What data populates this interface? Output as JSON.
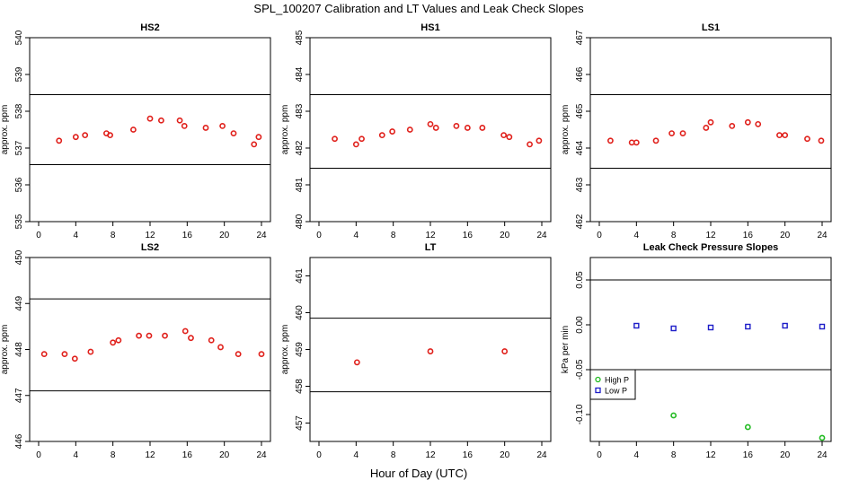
{
  "figure": {
    "title": "SPL_100207  Calibration and LT Values and Leak Check Slopes",
    "xlabel": "Hour of Day (UTC)"
  },
  "colors": {
    "red": "#e0201b",
    "green": "#22bb22",
    "blue": "#1c1cc8",
    "axis": "#000000"
  },
  "chart_data": [
    {
      "id": "hs2",
      "type": "scatter",
      "title": "HS2",
      "ylabel": "approx. ppm",
      "xlim": [
        0,
        24
      ],
      "ylim": [
        535,
        540
      ],
      "xticks": [
        "0",
        "4",
        "8",
        "12",
        "16",
        "20",
        "24"
      ],
      "yticks": [
        "535",
        "536",
        "537",
        "538",
        "539",
        "540"
      ],
      "hlines": [
        538.45,
        536.55
      ],
      "series": [
        {
          "marker": "circle",
          "color": "#e0201b",
          "x": [
            2.2,
            4.0,
            5.0,
            7.3,
            7.7,
            10.2,
            12.0,
            13.2,
            15.2,
            15.7,
            18.0,
            19.8,
            21.0,
            23.2,
            23.7
          ],
          "y": [
            537.2,
            537.3,
            537.35,
            537.4,
            537.35,
            537.5,
            537.8,
            537.75,
            537.75,
            537.6,
            537.55,
            537.6,
            537.4,
            537.1,
            537.3
          ]
        }
      ]
    },
    {
      "id": "hs1",
      "type": "scatter",
      "title": "HS1",
      "ylabel": "approx. ppm",
      "xlim": [
        0,
        24
      ],
      "ylim": [
        480,
        485
      ],
      "xticks": [
        "0",
        "4",
        "8",
        "12",
        "16",
        "20",
        "24"
      ],
      "yticks": [
        "480",
        "481",
        "482",
        "483",
        "484",
        "485"
      ],
      "hlines": [
        483.45,
        481.45
      ],
      "series": [
        {
          "marker": "circle",
          "color": "#e0201b",
          "x": [
            1.7,
            4.0,
            4.6,
            6.8,
            7.9,
            9.8,
            12.0,
            12.6,
            14.8,
            16.0,
            17.6,
            19.9,
            20.5,
            22.7,
            23.7
          ],
          "y": [
            482.25,
            482.1,
            482.25,
            482.35,
            482.45,
            482.5,
            482.65,
            482.55,
            482.6,
            482.55,
            482.55,
            482.35,
            482.3,
            482.1,
            482.2
          ]
        }
      ]
    },
    {
      "id": "ls1",
      "type": "scatter",
      "title": "LS1",
      "ylabel": "approx. ppm",
      "xlim": [
        0,
        24
      ],
      "ylim": [
        462,
        467
      ],
      "xticks": [
        "0",
        "4",
        "8",
        "12",
        "16",
        "20",
        "24"
      ],
      "yticks": [
        "462",
        "463",
        "464",
        "465",
        "466",
        "467"
      ],
      "hlines": [
        465.45,
        463.45
      ],
      "series": [
        {
          "marker": "circle",
          "color": "#e0201b",
          "x": [
            1.2,
            3.5,
            4.0,
            6.1,
            7.8,
            9.0,
            11.5,
            12.0,
            14.3,
            16.0,
            17.1,
            19.4,
            20.0,
            22.4,
            23.9
          ],
          "y": [
            464.2,
            464.15,
            464.15,
            464.2,
            464.4,
            464.4,
            464.55,
            464.7,
            464.6,
            464.7,
            464.65,
            464.35,
            464.35,
            464.25,
            464.2
          ]
        }
      ]
    },
    {
      "id": "ls2",
      "type": "scatter",
      "title": "LS2",
      "ylabel": "approx. ppm",
      "xlim": [
        0,
        24
      ],
      "ylim": [
        446,
        450
      ],
      "xticks": [
        "0",
        "4",
        "8",
        "12",
        "16",
        "20",
        "24"
      ],
      "yticks": [
        "446",
        "447",
        "448",
        "449",
        "450"
      ],
      "hlines": [
        449.1,
        447.1
      ],
      "series": [
        {
          "marker": "circle",
          "color": "#e0201b",
          "x": [
            0.6,
            2.8,
            3.9,
            5.6,
            8.0,
            8.6,
            10.8,
            11.9,
            13.6,
            15.8,
            16.4,
            18.6,
            19.6,
            21.5,
            24.0
          ],
          "y": [
            447.9,
            447.9,
            447.8,
            447.95,
            448.15,
            448.2,
            448.3,
            448.3,
            448.3,
            448.4,
            448.25,
            448.2,
            448.05,
            447.9,
            447.9
          ]
        }
      ]
    },
    {
      "id": "lt",
      "type": "scatter",
      "title": "LT",
      "ylabel": "approx. ppm",
      "xlim": [
        0,
        24
      ],
      "ylim": [
        456.5,
        461.5
      ],
      "xticks": [
        "0",
        "4",
        "8",
        "12",
        "16",
        "20",
        "24"
      ],
      "yticks": [
        "457",
        "458",
        "459",
        "460",
        "461"
      ],
      "hlines": [
        459.85,
        457.85
      ],
      "series": [
        {
          "marker": "circle",
          "color": "#e0201b",
          "x": [
            4.1,
            12.0,
            20.0
          ],
          "y": [
            458.65,
            458.95,
            458.95
          ]
        }
      ]
    },
    {
      "id": "leak",
      "type": "scatter",
      "title": "Leak Check Pressure Slopes",
      "ylabel": "kPa per min",
      "xlim": [
        0,
        24
      ],
      "ylim": [
        -0.13,
        0.075
      ],
      "xticks": [
        "0",
        "4",
        "8",
        "12",
        "16",
        "20",
        "24"
      ],
      "yticks": [
        "-0.10",
        "-0.05",
        "0.00",
        "0.05"
      ],
      "hlines": [
        0.05,
        -0.05
      ],
      "legend": {
        "position": "left-below-lower-line",
        "entries": [
          "High P",
          "Low P"
        ]
      },
      "series": [
        {
          "name": "High P",
          "marker": "circle",
          "color": "#22bb22",
          "x": [
            8.0,
            16.0,
            24.0
          ],
          "y": [
            -0.101,
            -0.114,
            -0.126
          ]
        },
        {
          "name": "Low P",
          "marker": "square",
          "color": "#1c1cc8",
          "x": [
            4.0,
            8.0,
            12.0,
            16.0,
            20.0,
            24.0
          ],
          "y": [
            -0.001,
            -0.004,
            -0.003,
            -0.002,
            -0.001,
            -0.002
          ]
        }
      ]
    }
  ]
}
